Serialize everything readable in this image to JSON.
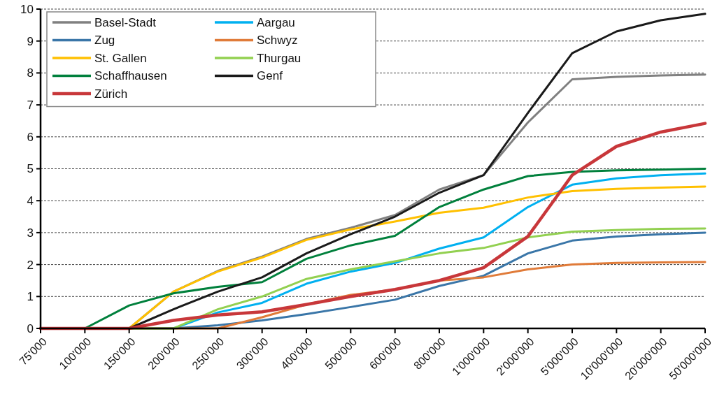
{
  "chart_data": {
    "type": "line",
    "categories": [
      "75'000",
      "100'000",
      "150'000",
      "200'000",
      "250'000",
      "300'000",
      "400'000",
      "500'000",
      "600'000",
      "800'000",
      "1'000'000",
      "2'000'000",
      "5'000'000",
      "10'000'000",
      "20'000'000",
      "50'000'000"
    ],
    "ylim": [
      0,
      10
    ],
    "yticks": [
      0,
      1,
      2,
      3,
      4,
      5,
      6,
      7,
      8,
      9,
      10
    ],
    "grid": "y",
    "legend": "top left",
    "line_style": "solid",
    "marker": "none",
    "series": [
      {
        "name": "Basel-Stadt",
        "color": "#808080",
        "values": [
          0,
          0,
          0,
          1.15,
          1.8,
          2.25,
          2.8,
          3.15,
          3.55,
          4.35,
          4.8,
          6.45,
          7.8,
          7.88,
          7.92,
          7.95
        ]
      },
      {
        "name": "Aargau",
        "color": "#00b0f0",
        "values": [
          null,
          null,
          0,
          0,
          0.5,
          0.8,
          1.4,
          1.78,
          2.05,
          2.5,
          2.85,
          3.8,
          4.5,
          4.7,
          4.8,
          4.85
        ]
      },
      {
        "name": "Zug",
        "color": "#3a76a8",
        "values": [
          null,
          null,
          0,
          0,
          0.1,
          0.25,
          0.45,
          0.67,
          0.9,
          1.33,
          1.65,
          2.35,
          2.75,
          2.88,
          2.95,
          3.0
        ]
      },
      {
        "name": "Schwyz",
        "color": "#e07b39",
        "values": [
          0,
          0,
          0,
          0,
          0,
          0.35,
          0.75,
          1.05,
          1.22,
          1.5,
          1.6,
          1.85,
          2.0,
          2.05,
          2.07,
          2.08
        ]
      },
      {
        "name": "St. Gallen",
        "color": "#ffc000",
        "values": [
          0,
          0,
          0,
          1.15,
          1.78,
          2.22,
          2.77,
          3.1,
          3.35,
          3.62,
          3.78,
          4.1,
          4.3,
          4.37,
          4.41,
          4.44
        ]
      },
      {
        "name": "Thurgau",
        "color": "#92d050",
        "values": [
          null,
          null,
          0,
          0,
          0.6,
          1.0,
          1.55,
          1.85,
          2.1,
          2.35,
          2.52,
          2.85,
          3.03,
          3.08,
          3.12,
          3.13
        ]
      },
      {
        "name": "Schaffhausen",
        "color": "#00803c",
        "values": [
          0,
          0,
          0.72,
          1.1,
          1.3,
          1.45,
          2.18,
          2.6,
          2.9,
          3.8,
          4.35,
          4.77,
          4.9,
          4.95,
          4.97,
          5.0
        ]
      },
      {
        "name": "Genf",
        "color": "#1a1a1a",
        "values": [
          0,
          0,
          0,
          0.6,
          1.15,
          1.6,
          2.35,
          2.95,
          3.5,
          4.25,
          4.8,
          6.75,
          8.62,
          9.3,
          9.65,
          9.85
        ]
      },
      {
        "name": "Zürich",
        "color": "#c8373a",
        "values": [
          0,
          0,
          0,
          0.25,
          0.42,
          0.52,
          0.75,
          1.0,
          1.22,
          1.5,
          1.9,
          2.88,
          4.8,
          5.7,
          6.15,
          6.42
        ]
      }
    ]
  }
}
